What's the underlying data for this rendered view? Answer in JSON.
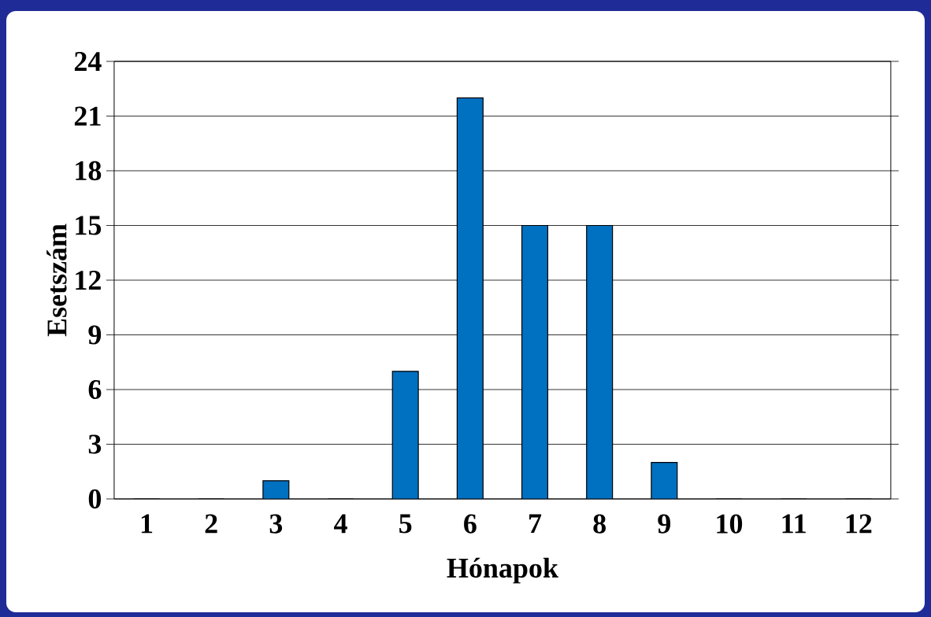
{
  "chart_data": {
    "type": "bar",
    "xlabel": "Hónapok",
    "ylabel": "Esetszám",
    "categories": [
      "1",
      "2",
      "3",
      "4",
      "5",
      "6",
      "7",
      "8",
      "9",
      "10",
      "11",
      "12"
    ],
    "values": [
      0,
      0,
      1,
      0,
      7,
      22,
      15,
      15,
      2,
      0,
      0,
      0
    ],
    "color": "#0070c0",
    "ylim": [
      0,
      24
    ],
    "yticks": [
      0,
      3,
      6,
      9,
      12,
      15,
      18,
      21,
      24
    ],
    "grid": "y"
  }
}
